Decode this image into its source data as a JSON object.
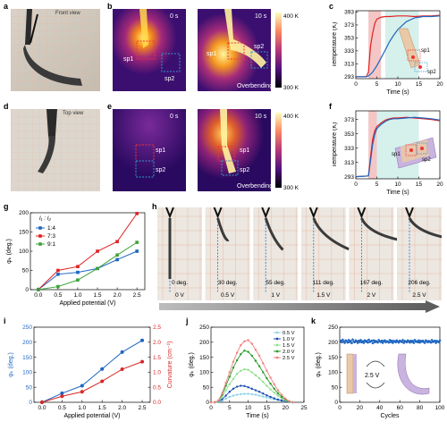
{
  "panel_letters": [
    "a",
    "b",
    "c",
    "d",
    "e",
    "f",
    "g",
    "h",
    "i",
    "j",
    "k"
  ],
  "panel_a": {
    "caption": "Front view"
  },
  "panel_d": {
    "caption": "Top view"
  },
  "panel_b": {
    "time_left": "0 s",
    "time_right": "10 s",
    "sp1": "sp1",
    "sp2": "sp2",
    "sp1_right": "sp1",
    "sp2_right": "sp2",
    "note": "Overbending",
    "cbar_max": "400 K",
    "cbar_min": "300 K"
  },
  "panel_e": {
    "time_left": "0 s",
    "time_right": "10 s",
    "sp1": "sp1",
    "sp2": "sp2",
    "sp1_right": "sp1",
    "sp2_right": "sp2",
    "note": "Overbending",
    "cbar_max": "400 K",
    "cbar_min": "300 K"
  },
  "panel_h": {
    "labels_top": [
      "0 deg.",
      "30 deg.",
      "55 deg.",
      "111 deg.",
      "167 deg.",
      "206 deg."
    ],
    "labels_bottom": [
      "0 V",
      "0.5 V",
      "1 V",
      "1.5 V",
      "2 V",
      "2.5 V"
    ]
  },
  "panel_k_inset": {
    "voltage": "2.5 V"
  },
  "chart_data": [
    {
      "id": "c",
      "type": "line",
      "xlabel": "Time (s)",
      "ylabel": "Temperature (K)",
      "xlim": [
        0,
        20
      ],
      "ylim": [
        290,
        395
      ],
      "xticks": [
        0,
        5,
        10,
        15,
        20
      ],
      "yticks": [
        293,
        313,
        333,
        353,
        373,
        393
      ],
      "shaded": [
        {
          "from": 3,
          "to": 6,
          "color": "#f4c6c6"
        },
        {
          "from": 7,
          "to": 15,
          "color": "#d6f0ec"
        }
      ],
      "series": [
        {
          "name": "sp1",
          "color": "#e02020",
          "x": [
            0,
            2.5,
            3,
            3.5,
            4,
            4.5,
            5,
            6,
            7,
            8,
            10,
            12,
            14,
            16,
            18,
            20
          ],
          "y": [
            293,
            293,
            300,
            340,
            360,
            375,
            382,
            385,
            386,
            386,
            387,
            387,
            386,
            387,
            387,
            388
          ]
        },
        {
          "name": "sp2",
          "color": "#1f66c1",
          "x": [
            0,
            2.5,
            3,
            4,
            5,
            6,
            7,
            8,
            9,
            10,
            11,
            12,
            13,
            14,
            15,
            16,
            18,
            20
          ],
          "y": [
            293,
            293,
            294,
            300,
            310,
            322,
            334,
            347,
            357,
            366,
            372,
            378,
            381,
            384,
            385,
            386,
            386,
            387
          ]
        }
      ],
      "inset_labels": [
        "sp1",
        "sp2"
      ]
    },
    {
      "id": "f",
      "type": "line",
      "xlabel": "Time (s)",
      "ylabel": "Temperature (K)",
      "xlim": [
        0,
        20
      ],
      "ylim": [
        290,
        385
      ],
      "xticks": [
        0,
        5,
        10,
        15,
        20
      ],
      "yticks": [
        293,
        313,
        333,
        353,
        373
      ],
      "shaded": [
        {
          "from": 3,
          "to": 5,
          "color": "#f4c6c6"
        },
        {
          "from": 5,
          "to": 15,
          "color": "#d6f0ec"
        }
      ],
      "series": [
        {
          "name": "sp1",
          "color": "#e02020",
          "x": [
            0,
            3,
            3.5,
            4,
            4.5,
            5,
            6,
            7,
            8,
            9,
            10,
            12,
            14,
            16,
            18,
            20
          ],
          "y": [
            293,
            294,
            320,
            345,
            357,
            363,
            368,
            372,
            374,
            375,
            375,
            376,
            375,
            374,
            373,
            371
          ]
        },
        {
          "name": "sp2",
          "color": "#1f66c1",
          "x": [
            0,
            3,
            3.5,
            4,
            4.5,
            5,
            6,
            7,
            8,
            9,
            10,
            12,
            14,
            16,
            18,
            20
          ],
          "y": [
            293,
            294,
            315,
            338,
            352,
            360,
            366,
            370,
            373,
            374,
            374,
            375,
            376,
            375,
            374,
            372
          ]
        }
      ],
      "inset_labels": [
        "sp1",
        "sp2"
      ]
    },
    {
      "id": "g",
      "type": "line",
      "xlabel": "Applied potential (V)",
      "ylabel": "φₖ (deg.)",
      "legend_title": "l₁ : l₂",
      "xlim": [
        -0.2,
        2.7
      ],
      "ylim": [
        0,
        200
      ],
      "xticks": [
        0.0,
        0.5,
        1.0,
        1.5,
        2.0,
        2.5
      ],
      "yticks": [
        0,
        50,
        100,
        150,
        200
      ],
      "series": [
        {
          "name": "1:4",
          "color": "#1f66c1",
          "marker": "square",
          "x": [
            0,
            0.5,
            1.0,
            1.5,
            2.0,
            2.5
          ],
          "y": [
            0,
            40,
            45,
            55,
            78,
            100
          ]
        },
        {
          "name": "7:3",
          "color": "#e02020",
          "marker": "square",
          "x": [
            0,
            0.5,
            1.0,
            1.5,
            2.0,
            2.5
          ],
          "y": [
            0,
            50,
            60,
            100,
            125,
            198
          ]
        },
        {
          "name": "9:1",
          "color": "#3aa33a",
          "marker": "square",
          "x": [
            0,
            0.5,
            1.0,
            1.5,
            2.0,
            2.5
          ],
          "y": [
            0,
            8,
            25,
            55,
            90,
            123
          ]
        }
      ]
    },
    {
      "id": "i",
      "type": "line",
      "xlabel": "Applied potential (V)",
      "ylabel": "φₖ (deg.)",
      "ylabel_right": "Curvature (cm⁻¹)",
      "xlim": [
        -0.2,
        2.7
      ],
      "ylim": [
        0,
        250
      ],
      "ylim_right": [
        0,
        2.5
      ],
      "xticks": [
        0.0,
        0.5,
        1.0,
        1.5,
        2.0,
        2.5
      ],
      "yticks": [
        0,
        50,
        100,
        150,
        200,
        250
      ],
      "yticks_right": [
        0.0,
        0.5,
        1.0,
        1.5,
        2.0,
        2.5
      ],
      "series": [
        {
          "name": "φₖ",
          "axis": "left",
          "color": "#1f66c1",
          "x": [
            0,
            0.5,
            1.0,
            1.5,
            2.0,
            2.5
          ],
          "y": [
            0,
            30,
            55,
            111,
            167,
            206
          ]
        },
        {
          "name": "Curvature",
          "axis": "right",
          "color": "#d62728",
          "x": [
            0,
            0.5,
            1.0,
            1.5,
            2.0,
            2.5
          ],
          "y": [
            0,
            0.2,
            0.35,
            0.7,
            1.1,
            1.35
          ]
        }
      ]
    },
    {
      "id": "j",
      "type": "line",
      "xlabel": "Time (s)",
      "ylabel": "φₖ (deg.)",
      "xlim": [
        0,
        25
      ],
      "ylim": [
        0,
        250
      ],
      "xticks": [
        0,
        5,
        10,
        15,
        20,
        25
      ],
      "yticks": [
        0,
        50,
        100,
        150,
        200,
        250
      ],
      "series": [
        {
          "name": "0.5 V",
          "color": "#8fd3e6",
          "x": [
            0,
            1,
            2,
            3,
            4,
            5,
            6,
            7,
            8,
            9,
            10,
            11,
            12,
            13,
            14,
            15,
            16,
            17,
            18,
            19,
            20,
            21,
            22
          ],
          "y": [
            0,
            0,
            0,
            5,
            12,
            18,
            22,
            25,
            27,
            28,
            28,
            27,
            25,
            22,
            19,
            16,
            13,
            10,
            7,
            5,
            3,
            1,
            0
          ]
        },
        {
          "name": "1.0 V",
          "color": "#1f4fb4",
          "x": [
            0,
            1,
            2,
            3,
            4,
            5,
            6,
            7,
            8,
            9,
            10,
            11,
            12,
            13,
            14,
            15,
            16,
            17,
            18,
            19,
            20,
            21,
            22
          ],
          "y": [
            0,
            0,
            2,
            10,
            22,
            35,
            45,
            52,
            55,
            54,
            50,
            45,
            40,
            35,
            29,
            23,
            18,
            13,
            9,
            6,
            3,
            1,
            0
          ]
        },
        {
          "name": "1.5 V",
          "color": "#90e090",
          "x": [
            0,
            1,
            2,
            3,
            4,
            5,
            6,
            7,
            8,
            9,
            10,
            11,
            12,
            13,
            14,
            15,
            16,
            17,
            18,
            19,
            20,
            21,
            22
          ],
          "y": [
            0,
            0,
            3,
            18,
            40,
            60,
            78,
            95,
            105,
            110,
            108,
            100,
            90,
            80,
            68,
            55,
            43,
            32,
            22,
            13,
            6,
            2,
            0
          ]
        },
        {
          "name": "2.0 V",
          "color": "#2a9a2a",
          "x": [
            0,
            1,
            2,
            3,
            4,
            5,
            6,
            7,
            8,
            9,
            10,
            11,
            12,
            13,
            14,
            15,
            16,
            17,
            18,
            19,
            20,
            21,
            22
          ],
          "y": [
            0,
            0,
            5,
            25,
            55,
            85,
            115,
            140,
            160,
            172,
            168,
            155,
            138,
            120,
            100,
            80,
            62,
            45,
            30,
            18,
            9,
            3,
            0
          ]
        },
        {
          "name": "2.5 V",
          "color": "#f08080",
          "x": [
            0,
            1,
            2,
            3,
            4,
            5,
            6,
            7,
            8,
            9,
            10,
            11,
            12,
            13,
            14,
            15,
            16,
            17,
            18,
            19,
            20,
            21,
            22
          ],
          "y": [
            0,
            0,
            6,
            30,
            65,
            100,
            135,
            165,
            190,
            203,
            207,
            195,
            175,
            155,
            130,
            105,
            82,
            60,
            40,
            25,
            12,
            4,
            0
          ]
        }
      ]
    },
    {
      "id": "k",
      "type": "scatter",
      "xlabel": "Cycles",
      "ylabel": "φₖ (deg.)",
      "xlim": [
        0,
        100
      ],
      "ylim": [
        0,
        250
      ],
      "xticks": [
        0,
        20,
        40,
        60,
        80,
        100
      ],
      "yticks": [
        0,
        50,
        100,
        150,
        200,
        250
      ],
      "series": [
        {
          "name": "φₖ",
          "color": "#1f66c1",
          "x": [
            1,
            2,
            3,
            4,
            5,
            6,
            7,
            8,
            9,
            10,
            11,
            12,
            13,
            14,
            15,
            16,
            17,
            18,
            19,
            20,
            21,
            22,
            23,
            24,
            25,
            26,
            27,
            28,
            29,
            30,
            31,
            32,
            33,
            34,
            35,
            36,
            37,
            38,
            39,
            40,
            41,
            42,
            43,
            44,
            45,
            46,
            47,
            48,
            49,
            50,
            51,
            52,
            53,
            54,
            55,
            56,
            57,
            58,
            59,
            60,
            61,
            62,
            63,
            64,
            65,
            66,
            67,
            68,
            69,
            70,
            71,
            72,
            73,
            74,
            75,
            76,
            77,
            78,
            79,
            80,
            81,
            82,
            83,
            84,
            85,
            86,
            87,
            88,
            89,
            90,
            91,
            92,
            93,
            94,
            95,
            96,
            97,
            98,
            99,
            100
          ],
          "y": [
            205,
            200,
            208,
            202,
            198,
            206,
            203,
            199,
            207,
            201,
            204,
            197,
            209,
            202,
            200,
            206,
            203,
            198,
            205,
            201,
            207,
            200,
            203,
            198,
            206,
            202,
            204,
            199,
            208,
            201,
            203,
            205,
            197,
            206,
            200,
            204,
            202,
            199,
            207,
            203,
            201,
            205,
            198,
            204,
            206,
            200,
            203,
            202,
            199,
            207,
            201,
            205,
            198,
            204,
            203,
            200,
            206,
            202,
            199,
            205,
            203,
            201,
            207,
            198,
            204,
            202,
            200,
            206,
            203,
            199,
            205,
            201,
            204,
            198,
            207,
            202,
            203,
            200,
            206,
            199,
            204,
            202,
            205,
            201,
            198,
            206,
            203,
            200,
            204,
            202,
            199,
            207,
            201,
            203,
            205,
            198,
            204,
            202,
            200,
            206
          ]
        }
      ]
    }
  ]
}
